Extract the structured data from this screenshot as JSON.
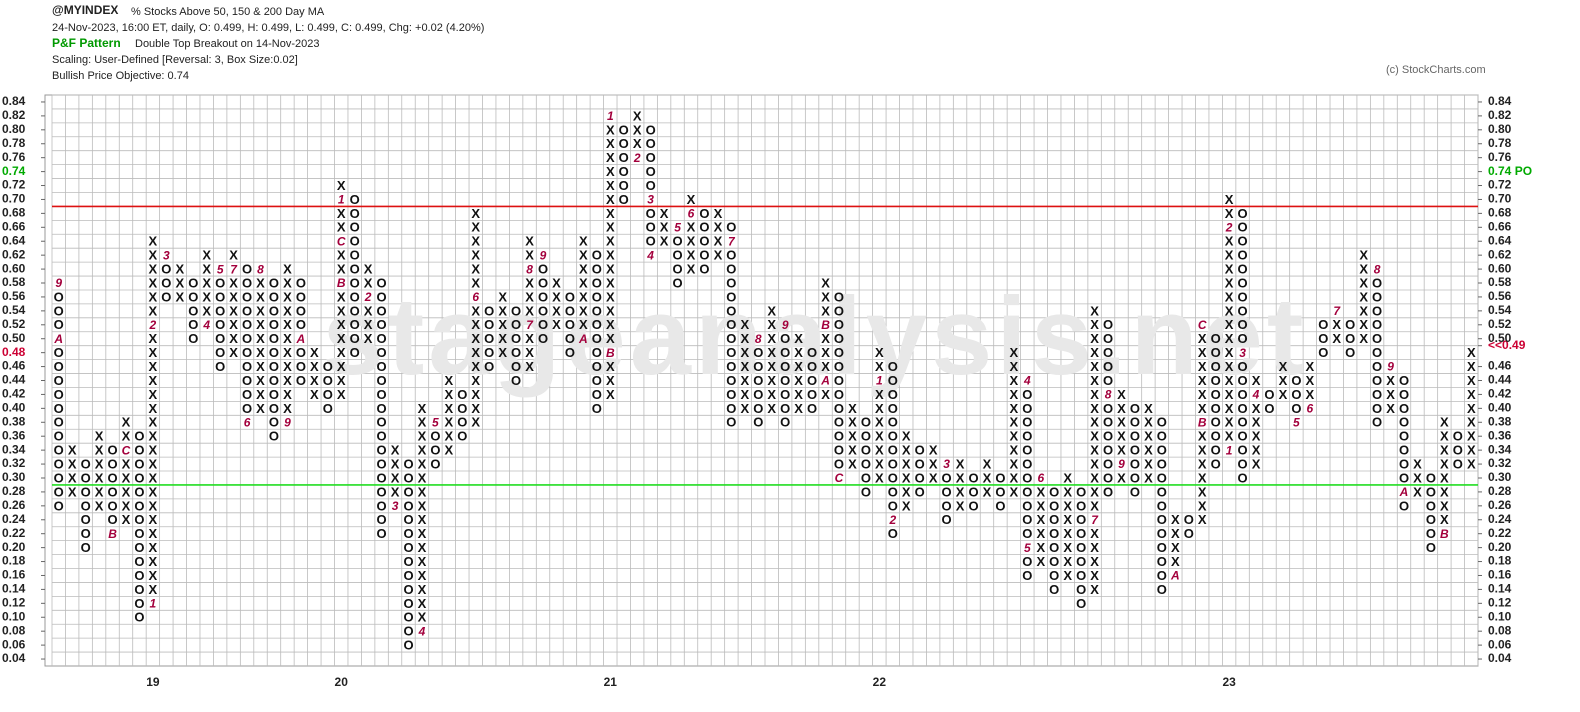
{
  "chart_data": {
    "type": "pnf",
    "symbol": "@MYINDEX",
    "title": "% Stocks Above 50, 150 & 200 Day MA",
    "quote": "24-Nov-2023, 16:00 ET, daily, O: 0.499, H: 0.499, L: 0.499, C: 0.499, Chg: +0.02 (4.20%)",
    "pattern_label": "P&F Pattern",
    "pattern": "Double Top Breakout on 14-Nov-2023",
    "scaling": "Scaling: User-Defined [Reversal: 3, Box Size:0.02]",
    "objective": "Bullish Price Objective: 0.74",
    "copyright": "(c) StockCharts.com",
    "watermark": "stageanalysis.net",
    "ylim": [
      0.03,
      0.85
    ],
    "yticks": [
      0.04,
      0.06,
      0.08,
      {
        "value": 0.1,
        "label": "0.10"
      },
      0.12,
      0.14,
      0.16,
      0.18,
      {
        "value": 0.2,
        "label": "0.20"
      },
      0.22,
      0.24,
      0.26,
      0.28,
      {
        "value": 0.3,
        "label": "0.30"
      },
      0.32,
      0.34,
      0.36,
      0.38,
      {
        "value": 0.4,
        "label": "0.40"
      },
      0.42,
      0.44,
      0.46,
      {
        "value": 0.48,
        "label": "0.48",
        "color": "#cc0033"
      },
      {
        "value": 0.5,
        "label": "0.50"
      },
      0.52,
      0.54,
      0.56,
      0.58,
      {
        "value": 0.6,
        "label": "0.60"
      },
      0.62,
      0.64,
      0.66,
      0.68,
      {
        "value": 0.7,
        "label": "0.70"
      },
      0.72,
      {
        "value": 0.74,
        "label": "0.74",
        "color": "#00aa00"
      },
      0.76,
      0.78,
      {
        "value": 0.8,
        "label": "0.80"
      },
      0.82,
      0.84
    ],
    "y2ticks": [
      0.04,
      0.06,
      0.08,
      {
        "value": 0.1,
        "label": "0.10"
      },
      0.12,
      0.14,
      0.16,
      0.18,
      {
        "value": 0.2,
        "label": "0.20"
      },
      0.22,
      0.24,
      0.26,
      0.28,
      {
        "value": 0.3,
        "label": "0.30"
      },
      0.32,
      0.34,
      0.36,
      0.38,
      {
        "value": 0.4,
        "label": "0.40"
      },
      0.42,
      0.44,
      0.46,
      {
        "value": 0.49,
        "label": "<<0.49",
        "color": "#cc0033"
      },
      {
        "value": 0.5,
        "label": "0.50"
      },
      0.52,
      0.54,
      0.56,
      0.58,
      {
        "value": 0.6,
        "label": "0.60"
      },
      0.62,
      0.64,
      0.66,
      0.68,
      {
        "value": 0.7,
        "label": "0.70"
      },
      0.72,
      {
        "value": 0.74,
        "label": "0.74 PO",
        "color": "#00aa00"
      },
      0.76,
      0.78,
      {
        "value": 0.8,
        "label": "0.80"
      },
      0.82,
      0.84
    ],
    "trendlines": [
      {
        "value": 0.69,
        "color": "#dd1111"
      },
      {
        "value": 0.29,
        "color": "#22dd22"
      }
    ],
    "columns": [
      {
        "type": "O",
        "low": 0.26,
        "high": 0.58,
        "months": [
          {
            "label": "9",
            "value": 0.58
          },
          {
            "label": "A",
            "value": 0.5
          }
        ]
      },
      {
        "type": "X",
        "low": 0.28,
        "high": 0.34
      },
      {
        "type": "O",
        "low": 0.2,
        "high": 0.32
      },
      {
        "type": "X",
        "low": 0.26,
        "high": 0.36
      },
      {
        "type": "O",
        "low": 0.22,
        "high": 0.34,
        "months": [
          {
            "label": "B",
            "value": 0.22
          }
        ]
      },
      {
        "type": "X",
        "low": 0.24,
        "high": 0.38,
        "months": [
          {
            "label": "C",
            "value": 0.34
          }
        ]
      },
      {
        "type": "O",
        "low": 0.1,
        "high": 0.36
      },
      {
        "type": "X",
        "low": 0.12,
        "high": 0.64,
        "label": "19",
        "months": [
          {
            "label": "1",
            "value": 0.12
          },
          {
            "label": "2",
            "value": 0.52
          }
        ]
      },
      {
        "type": "O",
        "low": 0.56,
        "high": 0.62,
        "months": [
          {
            "label": "3",
            "value": 0.62
          }
        ]
      },
      {
        "type": "X",
        "low": 0.56,
        "high": 0.6
      },
      {
        "type": "O",
        "low": 0.5,
        "high": 0.58
      },
      {
        "type": "X",
        "low": 0.52,
        "high": 0.62,
        "months": [
          {
            "label": "4",
            "value": 0.52
          }
        ]
      },
      {
        "type": "O",
        "low": 0.46,
        "high": 0.6,
        "months": [
          {
            "label": "5",
            "value": 0.6
          }
        ]
      },
      {
        "type": "X",
        "low": 0.48,
        "high": 0.62,
        "months": [
          {
            "label": "7",
            "value": 0.6
          }
        ]
      },
      {
        "type": "O",
        "low": 0.38,
        "high": 0.6,
        "months": [
          {
            "label": "6",
            "value": 0.38
          }
        ]
      },
      {
        "type": "X",
        "low": 0.4,
        "high": 0.6,
        "months": [
          {
            "label": "8",
            "value": 0.6
          }
        ]
      },
      {
        "type": "O",
        "low": 0.36,
        "high": 0.58
      },
      {
        "type": "X",
        "low": 0.38,
        "high": 0.6,
        "months": [
          {
            "label": "9",
            "value": 0.38
          }
        ]
      },
      {
        "type": "O",
        "low": 0.44,
        "high": 0.58,
        "months": [
          {
            "label": "A",
            "value": 0.5
          }
        ]
      },
      {
        "type": "X",
        "low": 0.42,
        "high": 0.48
      },
      {
        "type": "O",
        "low": 0.4,
        "high": 0.46
      },
      {
        "type": "X",
        "low": 0.42,
        "high": 0.72,
        "label": "20",
        "months": [
          {
            "label": "B",
            "value": 0.58
          },
          {
            "label": "C",
            "value": 0.64
          },
          {
            "label": "1",
            "value": 0.7
          }
        ]
      },
      {
        "type": "O",
        "low": 0.48,
        "high": 0.7
      },
      {
        "type": "X",
        "low": 0.5,
        "high": 0.6,
        "months": [
          {
            "label": "2",
            "value": 0.56
          }
        ]
      },
      {
        "type": "O",
        "low": 0.22,
        "high": 0.58
      },
      {
        "type": "X",
        "low": 0.26,
        "high": 0.34,
        "months": [
          {
            "label": "3",
            "value": 0.26
          }
        ]
      },
      {
        "type": "O",
        "low": 0.06,
        "high": 0.32
      },
      {
        "type": "X",
        "low": 0.08,
        "high": 0.4,
        "months": [
          {
            "label": "4",
            "value": 0.08
          }
        ]
      },
      {
        "type": "O",
        "low": 0.32,
        "high": 0.38,
        "months": [
          {
            "label": "5",
            "value": 0.38
          }
        ]
      },
      {
        "type": "X",
        "low": 0.34,
        "high": 0.44
      },
      {
        "type": "O",
        "low": 0.36,
        "high": 0.42
      },
      {
        "type": "X",
        "low": 0.38,
        "high": 0.68,
        "months": [
          {
            "label": "6",
            "value": 0.56
          }
        ]
      },
      {
        "type": "O",
        "low": 0.46,
        "high": 0.54
      },
      {
        "type": "X",
        "low": 0.48,
        "high": 0.56
      },
      {
        "type": "O",
        "low": 0.44,
        "high": 0.54
      },
      {
        "type": "X",
        "low": 0.46,
        "high": 0.64,
        "months": [
          {
            "label": "7",
            "value": 0.52
          },
          {
            "label": "8",
            "value": 0.6
          }
        ]
      },
      {
        "type": "O",
        "low": 0.5,
        "high": 0.62,
        "months": [
          {
            "label": "9",
            "value": 0.62
          }
        ]
      },
      {
        "type": "X",
        "low": 0.52,
        "high": 0.58
      },
      {
        "type": "O",
        "low": 0.48,
        "high": 0.56
      },
      {
        "type": "X",
        "low": 0.5,
        "high": 0.64,
        "months": [
          {
            "label": "A",
            "value": 0.5
          }
        ]
      },
      {
        "type": "O",
        "low": 0.4,
        "high": 0.62
      },
      {
        "type": "X",
        "low": 0.42,
        "high": 0.82,
        "label": "21",
        "months": [
          {
            "label": "B",
            "value": 0.48
          },
          {
            "label": "1",
            "value": 0.82
          }
        ]
      },
      {
        "type": "O",
        "low": 0.7,
        "high": 0.8
      },
      {
        "type": "X",
        "low": 0.76,
        "high": 0.82,
        "months": [
          {
            "label": "2",
            "value": 0.76
          }
        ]
      },
      {
        "type": "O",
        "low": 0.62,
        "high": 0.8,
        "months": [
          {
            "label": "3",
            "value": 0.7
          },
          {
            "label": "4",
            "value": 0.62
          }
        ]
      },
      {
        "type": "X",
        "low": 0.64,
        "high": 0.68
      },
      {
        "type": "O",
        "low": 0.58,
        "high": 0.66,
        "months": [
          {
            "label": "5",
            "value": 0.66
          }
        ]
      },
      {
        "type": "X",
        "low": 0.6,
        "high": 0.7,
        "months": [
          {
            "label": "6",
            "value": 0.68
          }
        ]
      },
      {
        "type": "O",
        "low": 0.6,
        "high": 0.68
      },
      {
        "type": "X",
        "low": 0.62,
        "high": 0.68
      },
      {
        "type": "O",
        "low": 0.38,
        "high": 0.66,
        "months": [
          {
            "label": "7",
            "value": 0.64
          }
        ]
      },
      {
        "type": "X",
        "low": 0.4,
        "high": 0.52
      },
      {
        "type": "O",
        "low": 0.38,
        "high": 0.5,
        "months": [
          {
            "label": "8",
            "value": 0.5
          }
        ]
      },
      {
        "type": "X",
        "low": 0.4,
        "high": 0.54
      },
      {
        "type": "O",
        "low": 0.38,
        "high": 0.52,
        "months": [
          {
            "label": "9",
            "value": 0.52
          }
        ]
      },
      {
        "type": "X",
        "low": 0.4,
        "high": 0.5
      },
      {
        "type": "O",
        "low": 0.4,
        "high": 0.48
      },
      {
        "type": "X",
        "low": 0.42,
        "high": 0.58,
        "months": [
          {
            "label": "A",
            "value": 0.44
          },
          {
            "label": "B",
            "value": 0.52
          }
        ]
      },
      {
        "type": "O",
        "low": 0.3,
        "high": 0.56,
        "months": [
          {
            "label": "C",
            "value": 0.3
          }
        ]
      },
      {
        "type": "X",
        "low": 0.32,
        "high": 0.4
      },
      {
        "type": "O",
        "low": 0.28,
        "high": 0.38
      },
      {
        "type": "X",
        "low": 0.3,
        "high": 0.48,
        "label": "22",
        "months": [
          {
            "label": "1",
            "value": 0.44
          }
        ]
      },
      {
        "type": "O",
        "low": 0.22,
        "high": 0.46,
        "months": [
          {
            "label": "2",
            "value": 0.24
          }
        ]
      },
      {
        "type": "X",
        "low": 0.26,
        "high": 0.36
      },
      {
        "type": "O",
        "low": 0.28,
        "high": 0.34
      },
      {
        "type": "X",
        "low": 0.3,
        "high": 0.34
      },
      {
        "type": "O",
        "low": 0.24,
        "high": 0.32,
        "months": [
          {
            "label": "3",
            "value": 0.32
          }
        ]
      },
      {
        "type": "X",
        "low": 0.26,
        "high": 0.32
      },
      {
        "type": "O",
        "low": 0.26,
        "high": 0.3
      },
      {
        "type": "X",
        "low": 0.28,
        "high": 0.32
      },
      {
        "type": "O",
        "low": 0.26,
        "high": 0.3
      },
      {
        "type": "X",
        "low": 0.28,
        "high": 0.48
      },
      {
        "type": "O",
        "low": 0.16,
        "high": 0.44,
        "months": [
          {
            "label": "4",
            "value": 0.44
          },
          {
            "label": "5",
            "value": 0.2
          }
        ]
      },
      {
        "type": "X",
        "low": 0.18,
        "high": 0.3,
        "months": [
          {
            "label": "6",
            "value": 0.3
          }
        ]
      },
      {
        "type": "O",
        "low": 0.14,
        "high": 0.28
      },
      {
        "type": "X",
        "low": 0.16,
        "high": 0.3
      },
      {
        "type": "O",
        "low": 0.12,
        "high": 0.28
      },
      {
        "type": "X",
        "low": 0.14,
        "high": 0.54,
        "months": [
          {
            "label": "7",
            "value": 0.24
          }
        ]
      },
      {
        "type": "O",
        "low": 0.28,
        "high": 0.52,
        "months": [
          {
            "label": "8",
            "value": 0.42
          }
        ]
      },
      {
        "type": "X",
        "low": 0.3,
        "high": 0.42,
        "months": [
          {
            "label": "9",
            "value": 0.32
          }
        ]
      },
      {
        "type": "O",
        "low": 0.28,
        "high": 0.4
      },
      {
        "type": "X",
        "low": 0.3,
        "high": 0.4
      },
      {
        "type": "O",
        "low": 0.14,
        "high": 0.38
      },
      {
        "type": "X",
        "low": 0.16,
        "high": 0.24,
        "months": [
          {
            "label": "A",
            "value": 0.16
          }
        ]
      },
      {
        "type": "O",
        "low": 0.22,
        "high": 0.24
      },
      {
        "type": "X",
        "low": 0.24,
        "high": 0.52,
        "months": [
          {
            "label": "B",
            "value": 0.38
          },
          {
            "label": "C",
            "value": 0.52
          }
        ]
      },
      {
        "type": "O",
        "low": 0.32,
        "high": 0.5
      },
      {
        "type": "X",
        "low": 0.34,
        "high": 0.7,
        "label": "23",
        "months": [
          {
            "label": "1",
            "value": 0.34
          },
          {
            "label": "2",
            "value": 0.66
          }
        ]
      },
      {
        "type": "O",
        "low": 0.3,
        "high": 0.68,
        "months": [
          {
            "label": "3",
            "value": 0.48
          }
        ]
      },
      {
        "type": "X",
        "low": 0.32,
        "high": 0.44,
        "months": [
          {
            "label": "4",
            "value": 0.42
          }
        ]
      },
      {
        "type": "O",
        "low": 0.4,
        "high": 0.42
      },
      {
        "type": "X",
        "low": 0.42,
        "high": 0.46
      },
      {
        "type": "O",
        "low": 0.38,
        "high": 0.44,
        "months": [
          {
            "label": "5",
            "value": 0.38
          }
        ]
      },
      {
        "type": "X",
        "low": 0.4,
        "high": 0.46,
        "months": [
          {
            "label": "6",
            "value": 0.4
          }
        ]
      },
      {
        "type": "O",
        "low": 0.48,
        "high": 0.52
      },
      {
        "type": "X",
        "low": 0.5,
        "high": 0.54,
        "months": [
          {
            "label": "7",
            "value": 0.54
          }
        ]
      },
      {
        "type": "O",
        "low": 0.48,
        "high": 0.52
      },
      {
        "type": "X",
        "low": 0.5,
        "high": 0.62
      },
      {
        "type": "O",
        "low": 0.38,
        "high": 0.6,
        "months": [
          {
            "label": "8",
            "value": 0.6
          }
        ]
      },
      {
        "type": "X",
        "low": 0.4,
        "high": 0.46,
        "months": [
          {
            "label": "9",
            "value": 0.46
          }
        ]
      },
      {
        "type": "O",
        "low": 0.26,
        "high": 0.44,
        "months": [
          {
            "label": "A",
            "value": 0.28
          }
        ]
      },
      {
        "type": "X",
        "low": 0.28,
        "high": 0.32
      },
      {
        "type": "O",
        "low": 0.2,
        "high": 0.3
      },
      {
        "type": "X",
        "low": 0.22,
        "high": 0.38,
        "months": [
          {
            "label": "B",
            "value": 0.22
          }
        ]
      },
      {
        "type": "O",
        "low": 0.32,
        "high": 0.36
      },
      {
        "type": "X",
        "low": 0.32,
        "high": 0.48
      }
    ]
  }
}
